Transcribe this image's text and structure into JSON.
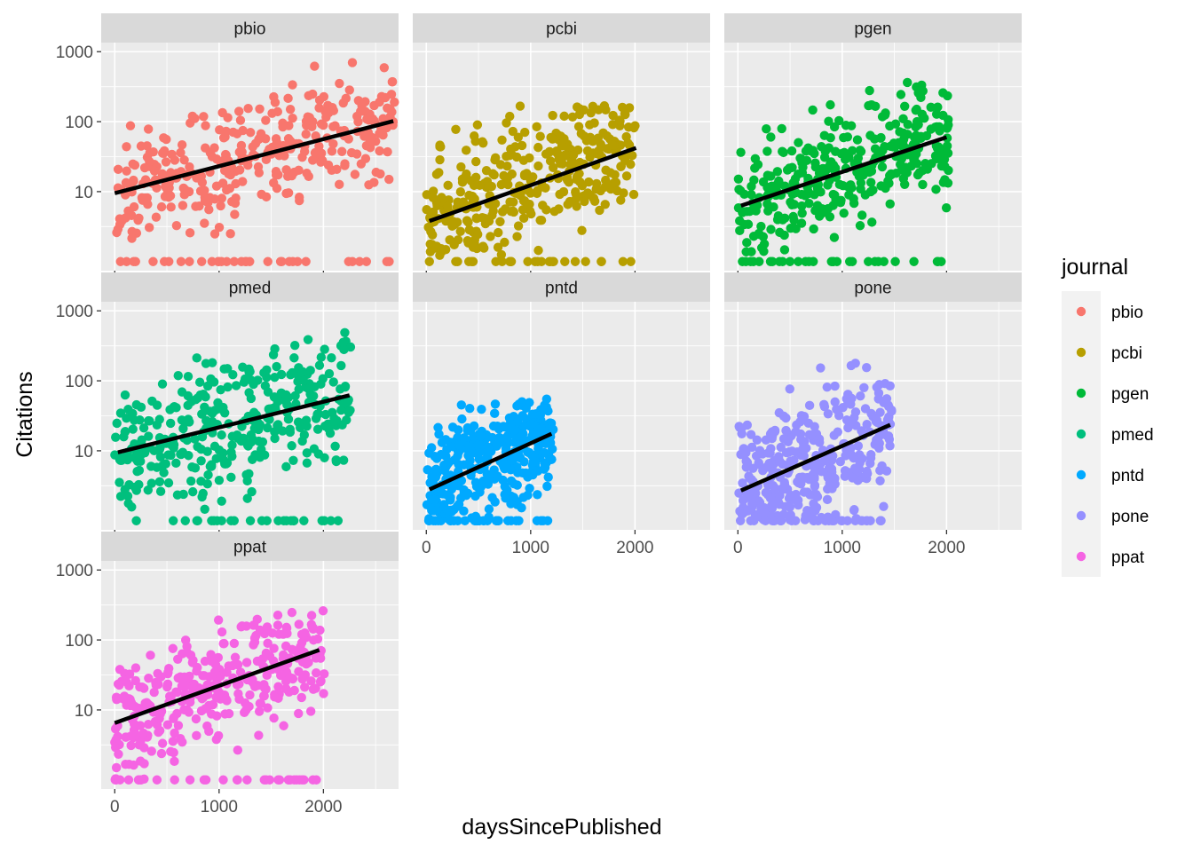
{
  "chart_data": {
    "type": "scatter",
    "facet_by": "journal",
    "xlabel": "daysSincePublished",
    "ylabel": "Citations",
    "y_scale": "log10",
    "xlim": [
      -130,
      2720
    ],
    "ylim_log10": [
      -0.13,
      3.13
    ],
    "x_ticks": [
      0,
      1000,
      2000
    ],
    "x_tick_labels": [
      "0",
      "1000",
      "2000"
    ],
    "y_ticks": [
      10,
      100,
      1000
    ],
    "y_tick_labels": [
      "10",
      "100",
      "1000"
    ],
    "grid": true,
    "legend": {
      "title": "journal",
      "placement": "right",
      "entries": [
        "pbio",
        "pcbi",
        "pgen",
        "pmed",
        "pntd",
        "pone",
        "ppat"
      ]
    },
    "panels": [
      {
        "name": "pbio",
        "color": "#F8766D",
        "x_max": 2700,
        "trend": {
          "x": [
            0,
            2670
          ],
          "y": [
            9.5,
            102
          ]
        },
        "cloud_low": 8,
        "cloud_high": 70,
        "outlier_max": 750,
        "spread": 0.42
      },
      {
        "name": "pcbi",
        "color": "#B79F00",
        "x_max": 2010,
        "trend": {
          "x": [
            30,
            2010
          ],
          "y": [
            3.8,
            42
          ]
        },
        "cloud_low": 2,
        "cloud_high": 40,
        "outlier_max": 180,
        "spread": 0.45
      },
      {
        "name": "pgen",
        "color": "#00BA38",
        "x_max": 2020,
        "trend": {
          "x": [
            30,
            2000
          ],
          "y": [
            6.3,
            60
          ]
        },
        "cloud_low": 3,
        "cloud_high": 55,
        "outlier_max": 380,
        "spread": 0.4
      },
      {
        "name": "pmed",
        "color": "#00BF7D",
        "x_max": 2260,
        "trend": {
          "x": [
            30,
            2250
          ],
          "y": [
            9.5,
            62
          ]
        },
        "cloud_low": 5,
        "cloud_high": 60,
        "outlier_max": 560,
        "spread": 0.45
      },
      {
        "name": "pntd",
        "color": "#00A9FF",
        "x_max": 1220,
        "trend": {
          "x": [
            30,
            1200
          ],
          "y": [
            2.8,
            17.5
          ]
        },
        "cloud_low": 2,
        "cloud_high": 20,
        "outlier_max": 55,
        "spread": 0.38
      },
      {
        "name": "pone",
        "color": "#9590FF",
        "x_max": 1480,
        "trend": {
          "x": [
            30,
            1460
          ],
          "y": [
            2.7,
            23.5
          ]
        },
        "cloud_low": 1.5,
        "cloud_high": 30,
        "outlier_max": 240,
        "spread": 0.5
      },
      {
        "name": "ppat",
        "color": "#F564E3",
        "x_max": 2010,
        "trend": {
          "x": [
            0,
            1960
          ],
          "y": [
            6.5,
            72
          ]
        },
        "cloud_low": 4,
        "cloud_high": 65,
        "outlier_max": 290,
        "spread": 0.4
      }
    ]
  }
}
